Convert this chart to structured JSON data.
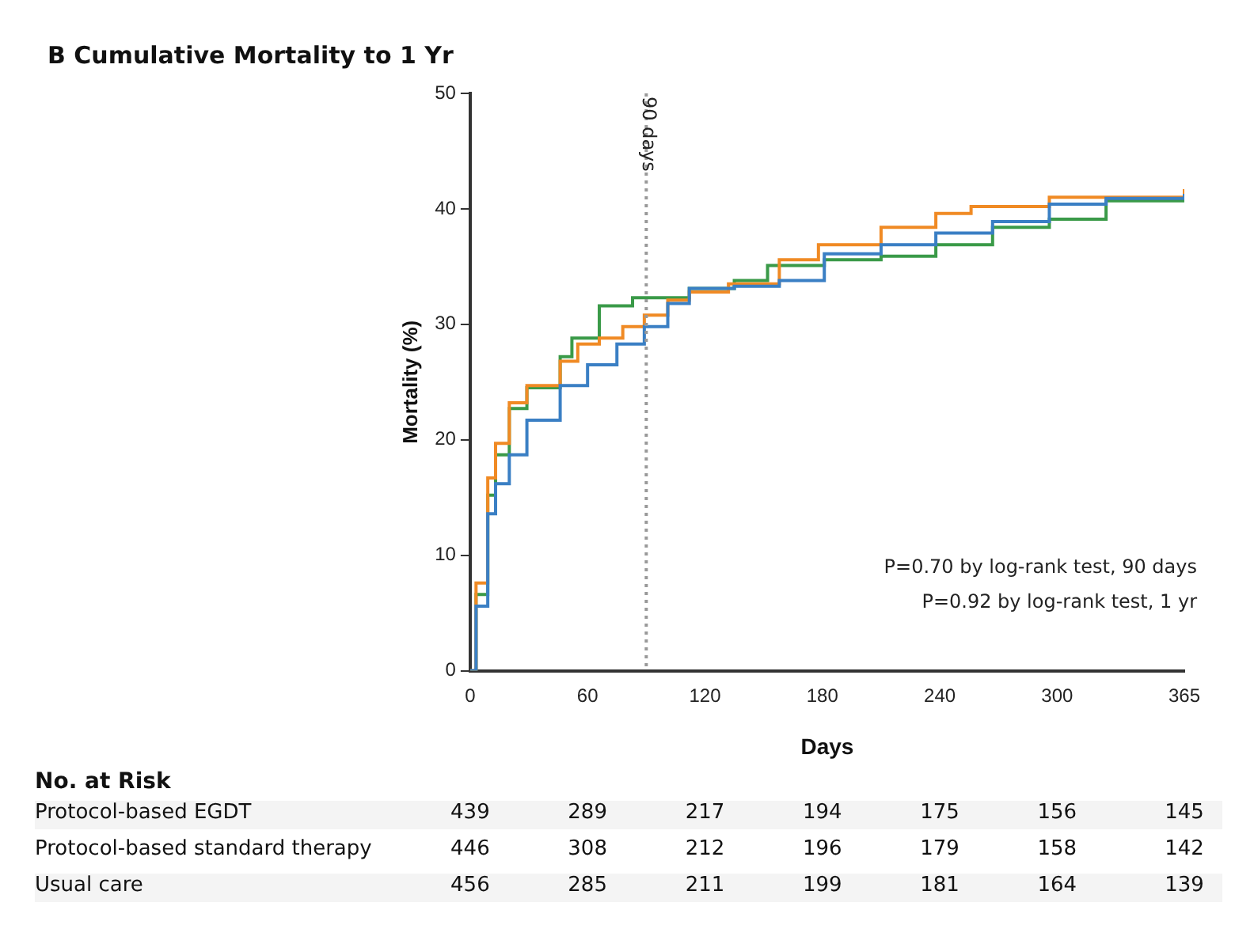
{
  "chart_data": {
    "type": "step",
    "title": "B  Cumulative Mortality to 1 Yr",
    "xlabel": "Days",
    "ylabel": "Mortality (%)",
    "xlim": [
      0,
      365
    ],
    "xticks": [
      0,
      60,
      120,
      180,
      240,
      300,
      365
    ],
    "ylim": [
      0,
      50
    ],
    "yticks": [
      0,
      10,
      20,
      30,
      40,
      50
    ],
    "grid": false,
    "legend": false,
    "marker": "none",
    "line_style": "solid",
    "ref_lines": [
      {
        "axis": "x",
        "value": 90,
        "label": "90 days",
        "color": "#999999",
        "line_style": "dotted"
      }
    ],
    "series": [
      {
        "color": "#3a7fc4",
        "x": [
          0,
          3,
          9,
          13,
          20,
          29,
          46,
          60,
          75,
          89,
          101,
          112,
          135,
          158,
          181,
          210,
          238,
          267,
          296,
          325,
          365
        ],
        "values": [
          0,
          5.6,
          13.6,
          16.2,
          18.7,
          21.7,
          24.7,
          26.5,
          28.3,
          29.8,
          31.8,
          33.1,
          33.3,
          33.8,
          36.1,
          36.9,
          37.9,
          38.9,
          40.4,
          40.9,
          41.3
        ]
      },
      {
        "color": "#f08a24",
        "x": [
          0,
          3,
          9,
          13,
          20,
          29,
          46,
          55,
          66,
          78,
          89,
          101,
          112,
          132,
          158,
          178,
          210,
          238,
          256,
          296,
          365
        ],
        "values": [
          0,
          7.6,
          16.7,
          19.7,
          23.2,
          24.7,
          26.8,
          28.3,
          28.8,
          29.8,
          30.8,
          32.1,
          32.8,
          33.5,
          35.6,
          36.9,
          38.4,
          39.6,
          40.2,
          41.0,
          41.7
        ]
      },
      {
        "color": "#3a9a48",
        "x": [
          0,
          3,
          9,
          13,
          20,
          29,
          46,
          52,
          66,
          83,
          112,
          135,
          152,
          181,
          210,
          238,
          267,
          296,
          325,
          365
        ],
        "values": [
          0,
          6.6,
          15.2,
          18.7,
          22.7,
          24.5,
          27.2,
          28.8,
          31.6,
          32.3,
          33.1,
          33.8,
          35.1,
          35.6,
          35.9,
          36.9,
          38.4,
          39.1,
          40.7,
          40.9
        ]
      }
    ],
    "annotations": [
      "P=0.70 by log-rank test, 90 days",
      "P=0.92 by log-rank test, 1 yr",
      "No. at Risk",
      "Protocol-based EGDT",
      "439",
      "289",
      "217",
      "194",
      "175",
      "156",
      "145",
      "Protocol-based standard therapy",
      "446",
      "308",
      "212",
      "196",
      "179",
      "158",
      "142",
      "Usual care",
      "456",
      "285",
      "211",
      "199",
      "181",
      "164",
      "139"
    ]
  }
}
